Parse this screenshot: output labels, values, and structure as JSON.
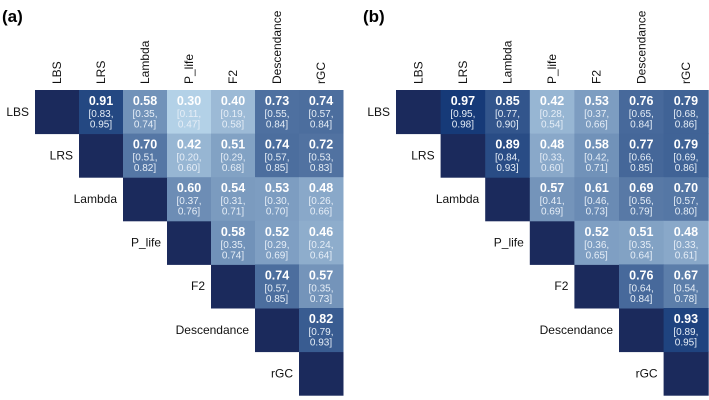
{
  "chart_data": [
    {
      "type": "heatmap",
      "title": "(a)",
      "labels": [
        "LBS",
        "LRS",
        "Lambda",
        "P_life",
        "F2",
        "Descendance",
        "rGC"
      ],
      "colors": {
        "diagonal": "#1b2a5c",
        "low": "#b3d1e7",
        "high": "#163a78"
      },
      "cells": [
        {
          "row": "LBS",
          "col": "LRS",
          "value": "0.91",
          "ci": [
            "[0.83,",
            "0.95]"
          ]
        },
        {
          "row": "LBS",
          "col": "Lambda",
          "value": "0.58",
          "ci": [
            "[0.35,",
            "0.74]"
          ]
        },
        {
          "row": "LBS",
          "col": "P_life",
          "value": "0.30",
          "ci": [
            "[0.11,",
            "0.47]"
          ]
        },
        {
          "row": "LBS",
          "col": "F2",
          "value": "0.40",
          "ci": [
            "[0.19,",
            "0.58]"
          ]
        },
        {
          "row": "LBS",
          "col": "Descendance",
          "value": "0.73",
          "ci": [
            "[0.55,",
            "0.84]"
          ]
        },
        {
          "row": "LBS",
          "col": "rGC",
          "value": "0.74",
          "ci": [
            "[0.57,",
            "0.84]"
          ]
        },
        {
          "row": "LRS",
          "col": "Lambda",
          "value": "0.70",
          "ci": [
            "[0.51,",
            "0.82]"
          ]
        },
        {
          "row": "LRS",
          "col": "P_life",
          "value": "0.42",
          "ci": [
            "[0.20,",
            "0.60]"
          ]
        },
        {
          "row": "LRS",
          "col": "F2",
          "value": "0.51",
          "ci": [
            "[0.29,",
            "0.68]"
          ]
        },
        {
          "row": "LRS",
          "col": "Descendance",
          "value": "0.74",
          "ci": [
            "[0.57,",
            "0.85]"
          ]
        },
        {
          "row": "LRS",
          "col": "rGC",
          "value": "0.72",
          "ci": [
            "[0.53,",
            "0.83]"
          ]
        },
        {
          "row": "Lambda",
          "col": "P_life",
          "value": "0.60",
          "ci": [
            "[0.37,",
            "0.76]"
          ]
        },
        {
          "row": "Lambda",
          "col": "F2",
          "value": "0.54",
          "ci": [
            "[0.31,",
            "0.71]"
          ]
        },
        {
          "row": "Lambda",
          "col": "Descendance",
          "value": "0.53",
          "ci": [
            "[0.30,",
            "0.70]"
          ]
        },
        {
          "row": "Lambda",
          "col": "rGC",
          "value": "0.48",
          "ci": [
            "[0.26,",
            "0.66]"
          ]
        },
        {
          "row": "P_life",
          "col": "F2",
          "value": "0.58",
          "ci": [
            "[0.35,",
            "0.74]"
          ]
        },
        {
          "row": "P_life",
          "col": "Descendance",
          "value": "0.52",
          "ci": [
            "[0.29,",
            "0.69]"
          ]
        },
        {
          "row": "P_life",
          "col": "rGC",
          "value": "0.46",
          "ci": [
            "[0.24,",
            "0.64]"
          ]
        },
        {
          "row": "F2",
          "col": "Descendance",
          "value": "0.74",
          "ci": [
            "[0.57,",
            "0.85]"
          ]
        },
        {
          "row": "F2",
          "col": "rGC",
          "value": "0.57",
          "ci": [
            "[0.35,",
            "0.73]"
          ]
        },
        {
          "row": "Descendance",
          "col": "rGC",
          "value": "0.82",
          "ci": [
            "[0.79,",
            "0.93]"
          ]
        }
      ]
    },
    {
      "type": "heatmap",
      "title": "(b)",
      "labels": [
        "LBS",
        "LRS",
        "Lambda",
        "P_life",
        "F2",
        "Descendance",
        "rGC"
      ],
      "colors": {
        "diagonal": "#1b2a5c",
        "low": "#b3d1e7",
        "high": "#163a78"
      },
      "cells": [
        {
          "row": "LBS",
          "col": "LRS",
          "value": "0.97",
          "ci": [
            "[0.95,",
            "0.98]"
          ]
        },
        {
          "row": "LBS",
          "col": "Lambda",
          "value": "0.85",
          "ci": [
            "[0.77,",
            "0.90]"
          ]
        },
        {
          "row": "LBS",
          "col": "P_life",
          "value": "0.42",
          "ci": [
            "[0.28,",
            "0.54]"
          ]
        },
        {
          "row": "LBS",
          "col": "F2",
          "value": "0.53",
          "ci": [
            "[0.37,",
            "0.66]"
          ]
        },
        {
          "row": "LBS",
          "col": "Descendance",
          "value": "0.76",
          "ci": [
            "[0.65,",
            "0.84]"
          ]
        },
        {
          "row": "LBS",
          "col": "rGC",
          "value": "0.79",
          "ci": [
            "[0.68,",
            "0.86]"
          ]
        },
        {
          "row": "LRS",
          "col": "Lambda",
          "value": "0.89",
          "ci": [
            "[0.84,",
            "0.93]"
          ]
        },
        {
          "row": "LRS",
          "col": "P_life",
          "value": "0.48",
          "ci": [
            "[0.33,",
            "0.60]"
          ]
        },
        {
          "row": "LRS",
          "col": "F2",
          "value": "0.58",
          "ci": [
            "[0.42,",
            "0.71]"
          ]
        },
        {
          "row": "LRS",
          "col": "Descendance",
          "value": "0.77",
          "ci": [
            "[0.66,",
            "0.85]"
          ]
        },
        {
          "row": "LRS",
          "col": "rGC",
          "value": "0.79",
          "ci": [
            "[0.69,",
            "0.86]"
          ]
        },
        {
          "row": "Lambda",
          "col": "P_life",
          "value": "0.57",
          "ci": [
            "[0.41,",
            "0.69]"
          ]
        },
        {
          "row": "Lambda",
          "col": "F2",
          "value": "0.61",
          "ci": [
            "[0.46,",
            "0.73]"
          ]
        },
        {
          "row": "Lambda",
          "col": "Descendance",
          "value": "0.69",
          "ci": [
            "[0.56,",
            "0.79]"
          ]
        },
        {
          "row": "Lambda",
          "col": "rGC",
          "value": "0.70",
          "ci": [
            "[0.57,",
            "0.80]"
          ]
        },
        {
          "row": "P_life",
          "col": "F2",
          "value": "0.52",
          "ci": [
            "[0.36,",
            "0.65]"
          ]
        },
        {
          "row": "P_life",
          "col": "Descendance",
          "value": "0.51",
          "ci": [
            "[0.35,",
            "0.64]"
          ]
        },
        {
          "row": "P_life",
          "col": "rGC",
          "value": "0.48",
          "ci": [
            "[0.33,",
            "0.61]"
          ]
        },
        {
          "row": "F2",
          "col": "Descendance",
          "value": "0.76",
          "ci": [
            "[0.64,",
            "0.84]"
          ]
        },
        {
          "row": "F2",
          "col": "rGC",
          "value": "0.67",
          "ci": [
            "[0.54,",
            "0.78]"
          ]
        },
        {
          "row": "Descendance",
          "col": "rGC",
          "value": "0.93",
          "ci": [
            "[0.89,",
            "0.95]"
          ]
        }
      ]
    }
  ]
}
